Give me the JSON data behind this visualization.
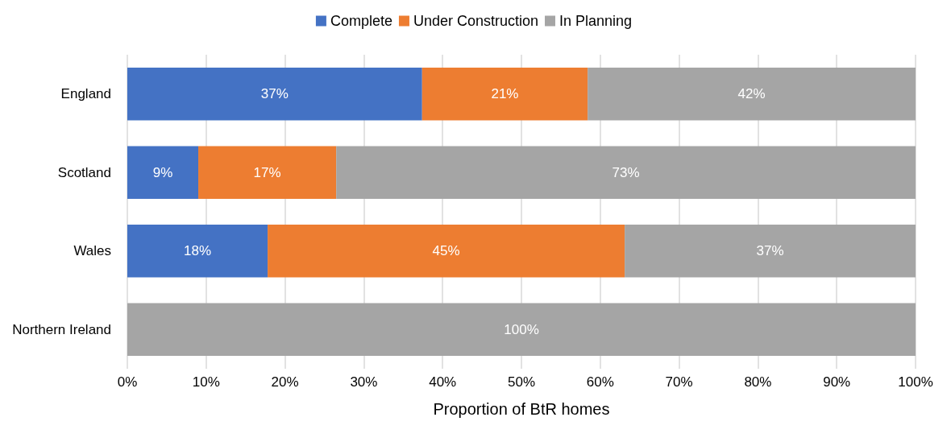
{
  "chart_data": {
    "type": "bar",
    "orientation": "horizontal",
    "stacked": true,
    "xlabel": "Proportion of BtR homes",
    "categories": [
      "England",
      "Scotland",
      "Wales",
      "Northern Ireland"
    ],
    "series": [
      {
        "name": "Complete",
        "color": "#4472c4",
        "values": [
          37.4,
          9.0,
          17.8,
          0
        ],
        "value_labels": [
          "37%",
          "9%",
          "18%",
          null
        ]
      },
      {
        "name": "Under Construction",
        "color": "#ed7d31",
        "values": [
          21.0,
          17.5,
          45.3,
          0
        ],
        "value_labels": [
          "21%",
          "17%",
          "45%",
          null
        ]
      },
      {
        "name": "In Planning",
        "color": "#a5a5a5",
        "values": [
          41.6,
          73.5,
          36.9,
          100
        ],
        "value_labels": [
          "42%",
          "73%",
          "37%",
          "100%"
        ]
      }
    ],
    "xlim": [
      0,
      100
    ],
    "xticks": [
      {
        "value": 0,
        "label": "0%"
      },
      {
        "value": 10,
        "label": "10%"
      },
      {
        "value": 20,
        "label": "20%"
      },
      {
        "value": 30,
        "label": "30%"
      },
      {
        "value": 40,
        "label": "40%"
      },
      {
        "value": 50,
        "label": "50%"
      },
      {
        "value": 60,
        "label": "60%"
      },
      {
        "value": 70,
        "label": "70%"
      },
      {
        "value": 80,
        "label": "80%"
      },
      {
        "value": 90,
        "label": "90%"
      },
      {
        "value": 100,
        "label": "100%"
      }
    ],
    "grid": "x",
    "legend": "top"
  }
}
